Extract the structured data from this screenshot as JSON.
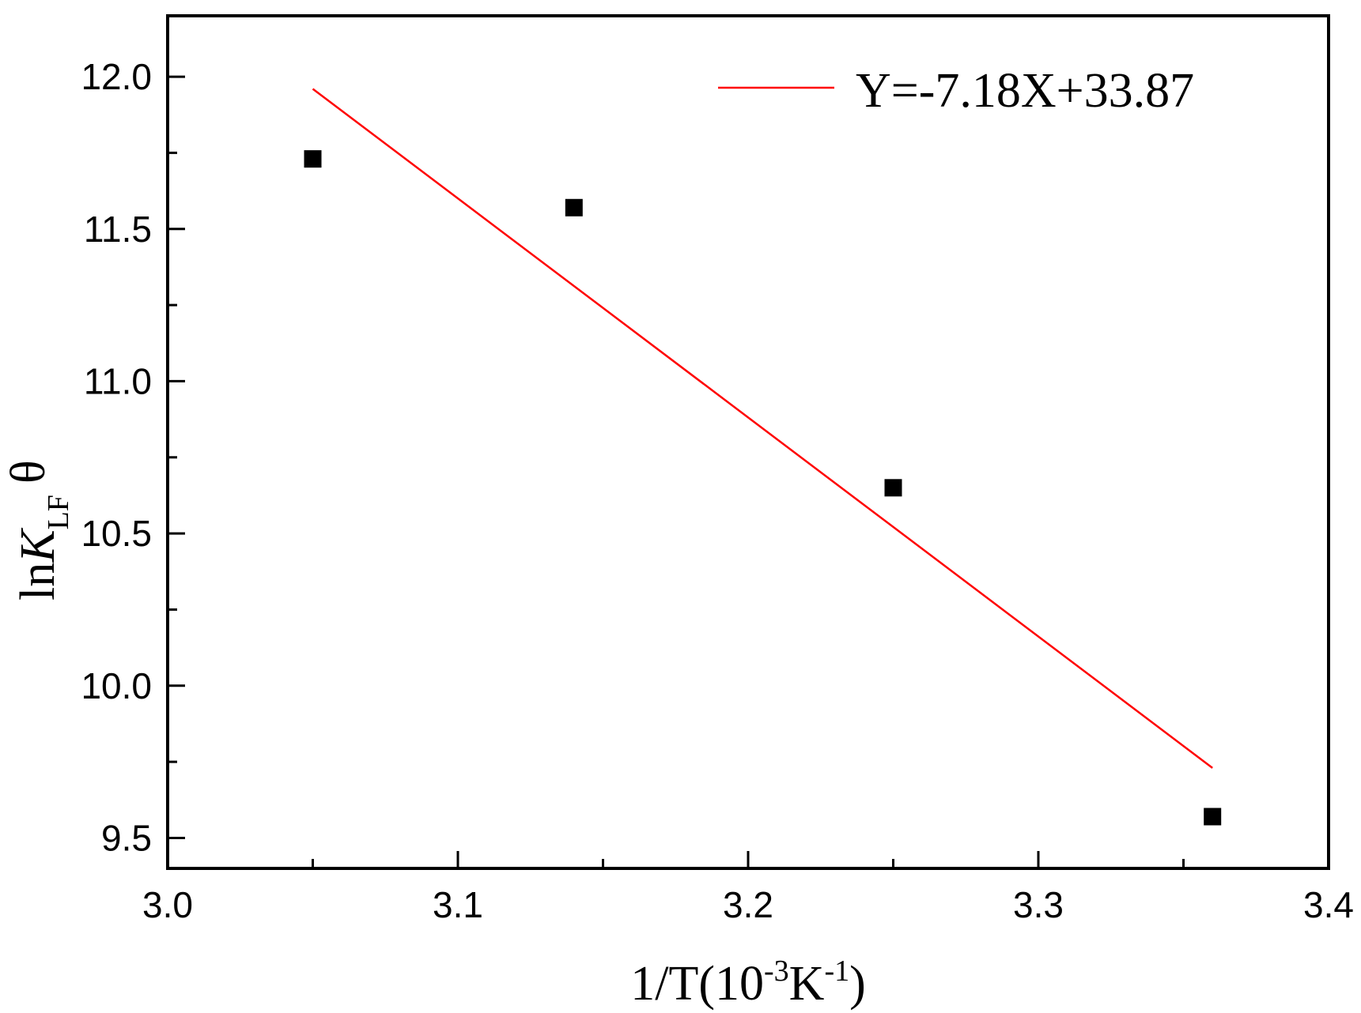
{
  "chart_data": {
    "type": "scatter",
    "title": "",
    "xlabel": {
      "base": "1/T(10",
      "sup1": "-3",
      "mid": "K",
      "sup2": "-1",
      "end": ")"
    },
    "ylabel": {
      "prefix": "ln",
      "var": "K",
      "sub": "LF",
      "suffix": "θ"
    },
    "xlim": [
      3.0,
      3.4
    ],
    "ylim": [
      9.4,
      12.2
    ],
    "x_ticks": [
      "3.0",
      "3.1",
      "3.2",
      "3.3",
      "3.4"
    ],
    "y_ticks": [
      "9.5",
      "10.0",
      "10.5",
      "11.0",
      "11.5",
      "12.0"
    ],
    "grid": false,
    "legend_position": "top-right",
    "series": [
      {
        "kind": "points",
        "marker": "square",
        "color": "#000000",
        "x": [
          3.05,
          3.14,
          3.25,
          3.36
        ],
        "y": [
          11.73,
          11.57,
          10.65,
          9.57
        ]
      },
      {
        "name": "Y=-7.18X+33.87",
        "kind": "line",
        "color": "#ff0000",
        "x": [
          3.05,
          3.36
        ],
        "y": [
          11.96,
          9.73
        ]
      }
    ]
  }
}
